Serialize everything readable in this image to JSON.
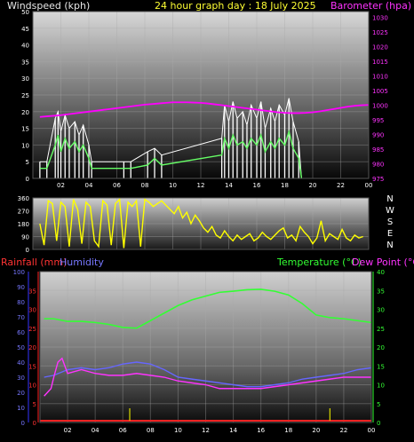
{
  "header": {
    "left_label": "Windspeed (kph)",
    "center_label": "24 hour graph day : 18 July 2025",
    "right_label": "Barometer (hpa)"
  },
  "colors": {
    "wind_max": "#ffffff",
    "wind_avg": "#66ff66",
    "barometer": "#ff00ff",
    "direction": "#ffff00",
    "rainfall": "#ff2222",
    "humidity": "#6666ff",
    "temperature": "#33ff33",
    "dewpoint": "#ff33ff",
    "rain_bars": "#cccc00"
  },
  "compass": [
    "N",
    "W",
    "S",
    "E",
    "N"
  ],
  "bottom_header": {
    "rainfall": "Rainfall (mm)",
    "humidity": "Humidity",
    "temperature": "Temperature (°C)",
    "dewpoint": "Dew Point (°C)"
  },
  "chart_data": [
    {
      "type": "line",
      "x_ticks": [
        "02",
        "04",
        "06",
        "08",
        "10",
        "12",
        "14",
        "16",
        "18",
        "20",
        "22",
        "00"
      ],
      "y_left_ticks": [
        "0",
        "5",
        "10",
        "15",
        "20",
        "25",
        "30",
        "35",
        "40",
        "45",
        "50"
      ],
      "y_right_ticks": [
        "975",
        "980",
        "985",
        "990",
        "995",
        "1000",
        "1005",
        "1010",
        "1015",
        "1020",
        "1025",
        "1030"
      ],
      "ylim_left": [
        0,
        50
      ],
      "ylim_right": [
        975,
        1032
      ],
      "series": [
        {
          "x": [
            0.5,
            1,
            1.5,
            2,
            2.5,
            3,
            3.5,
            4,
            4.5,
            5,
            5.5,
            6,
            6.5,
            7,
            7.5,
            8,
            8.5,
            9,
            9.5,
            10,
            10.5,
            11,
            11.5,
            12,
            12.5,
            13,
            13.5,
            14,
            14.5,
            15,
            15.5,
            16,
            16.5,
            17,
            17.5,
            18,
            18.5,
            19,
            19.5,
            20,
            20.5,
            21,
            21.5,
            22,
            22.5,
            23,
            23.5,
            24
          ],
          "values": [
            996,
            996.2,
            996.4,
            996.6,
            996.9,
            997.2,
            997.5,
            997.8,
            998.1,
            998.4,
            998.7,
            999,
            999.3,
            999.6,
            999.9,
            1000.2,
            1000.4,
            1000.6,
            1000.8,
            1001,
            1001,
            1001,
            1000.9,
            1000.8,
            1000.6,
            1000.3,
            1000,
            999.7,
            999.4,
            999.1,
            998.8,
            998.5,
            998.2,
            997.9,
            997.6,
            997.4,
            997.3,
            997.3,
            997.4,
            997.6,
            997.9,
            998.3,
            998.7,
            999.1,
            999.5,
            999.8,
            1000,
            1000.1
          ]
        },
        {
          "x": [
            0.5,
            1,
            1.6,
            1.8,
            2,
            2.3,
            2.6,
            3,
            3.3,
            3.6,
            4,
            4.2,
            6.5,
            7,
            8.2,
            8.7,
            9.2,
            13.5,
            13.7,
            14,
            14.3,
            14.6,
            15,
            15.3,
            15.6,
            16,
            16.3,
            16.6,
            17,
            17.3,
            17.6,
            18,
            18.3,
            18.6,
            19,
            19.2
          ],
          "values": [
            3,
            3,
            10,
            13,
            8,
            12,
            9,
            11,
            8,
            10,
            6,
            3,
            3,
            3,
            4,
            6,
            4,
            7,
            12,
            9,
            13,
            10,
            11,
            9,
            12,
            10,
            13,
            8,
            11,
            9,
            12,
            10,
            14,
            9,
            6,
            0
          ]
        },
        {
          "x": [
            0.5,
            1,
            1.6,
            1.8,
            2,
            2.3,
            2.6,
            3,
            3.3,
            3.6,
            4,
            4.2,
            6.5,
            7,
            8.2,
            8.7,
            9.2,
            13.5,
            13.7,
            14,
            14.3,
            14.6,
            15,
            15.3,
            15.6,
            16,
            16.3,
            16.6,
            17,
            17.3,
            17.6,
            18,
            18.3,
            18.6,
            19,
            19.2
          ],
          "values": [
            5,
            5,
            18,
            20,
            14,
            19,
            15,
            17,
            13,
            16,
            10,
            5,
            5,
            5,
            8,
            9,
            7,
            12,
            22,
            17,
            23,
            18,
            20,
            16,
            22,
            18,
            23,
            15,
            21,
            17,
            22,
            19,
            24,
            17,
            11,
            0
          ]
        }
      ]
    },
    {
      "type": "scatter",
      "x_ticks": [],
      "y_ticks": [
        "0",
        "90",
        "180",
        "270",
        "360"
      ],
      "ylim": [
        0,
        360
      ],
      "series": [
        {
          "x": [
            0.5,
            0.8,
            1.1,
            1.4,
            1.7,
            2,
            2.3,
            2.6,
            2.9,
            3.2,
            3.5,
            3.8,
            4.1,
            4.4,
            4.7,
            5,
            5.3,
            5.6,
            5.9,
            6.2,
            6.5,
            6.8,
            7.1,
            7.4,
            7.7,
            8,
            8.3,
            8.6,
            8.9,
            9.2,
            9.5,
            9.8,
            10.1,
            10.4,
            10.7,
            11,
            11.3,
            11.6,
            11.9,
            12.2,
            12.5,
            12.8,
            13.1,
            13.4,
            13.7,
            14,
            14.3,
            14.6,
            14.9,
            15.2,
            15.5,
            15.8,
            16.1,
            16.4,
            16.7,
            17,
            17.3,
            17.6,
            17.9,
            18.2,
            18.5,
            18.8,
            19.1,
            19.4,
            19.7,
            20,
            20.3,
            20.6,
            20.9,
            21.2,
            21.5,
            21.8,
            22.1,
            22.4,
            22.7,
            23,
            23.3,
            23.6
          ],
          "values": [
            180,
            30,
            340,
            320,
            60,
            330,
            300,
            20,
            350,
            280,
            40,
            330,
            300,
            60,
            20,
            340,
            310,
            30,
            320,
            350,
            10,
            330,
            300,
            340,
            20,
            350,
            330,
            300,
            320,
            340,
            310,
            280,
            250,
            300,
            220,
            260,
            180,
            240,
            200,
            150,
            120,
            160,
            100,
            80,
            130,
            90,
            60,
            100,
            70,
            90,
            110,
            60,
            80,
            120,
            90,
            70,
            100,
            130,
            150,
            80,
            100,
            60,
            160,
            120,
            90,
            40,
            80,
            200,
            60,
            110,
            90,
            70,
            140,
            80,
            60,
            100,
            80,
            90
          ]
        }
      ]
    },
    {
      "type": "line",
      "x_ticks": [
        "02",
        "04",
        "06",
        "08",
        "10",
        "12",
        "14",
        "16",
        "18",
        "20",
        "22",
        "00"
      ],
      "y_left_rain_ticks": [
        "0",
        "5",
        "10",
        "15",
        "20",
        "25",
        "30",
        "35"
      ],
      "y_left_hum_ticks": [
        "0",
        "10",
        "20",
        "30",
        "40",
        "50",
        "60",
        "70",
        "80",
        "90",
        "100"
      ],
      "y_right_ticks": [
        "0",
        "5",
        "10",
        "15",
        "20",
        "25",
        "30",
        "35",
        "40"
      ],
      "ylim_temp": [
        0,
        40
      ],
      "series": [
        {
          "x": [
            0.3,
            1,
            2,
            3,
            4,
            5,
            6,
            7,
            8,
            9,
            10,
            11,
            12,
            13,
            14,
            15,
            16,
            17,
            18,
            19,
            20,
            21,
            22,
            23,
            24
          ],
          "values": [
            27.5,
            27.5,
            26.8,
            26.8,
            26.5,
            26,
            25.2,
            25,
            27,
            29,
            31,
            32.5,
            33.5,
            34.5,
            34.8,
            35.2,
            35.3,
            34.8,
            33.8,
            31.5,
            28.5,
            27.8,
            27.5,
            27,
            26.5
          ]
        },
        {
          "x": [
            0.3,
            1,
            2,
            3,
            4,
            5,
            6,
            7,
            8,
            9,
            10,
            11,
            12,
            13,
            14,
            15,
            16,
            17,
            18,
            19,
            20,
            21,
            22,
            23,
            24
          ],
          "values": [
            12,
            12.5,
            14,
            14.5,
            14,
            14.5,
            15.5,
            16,
            15.5,
            14,
            12,
            11.5,
            11,
            10.5,
            10,
            9.5,
            9.5,
            10,
            10.5,
            11.5,
            12,
            12.5,
            13,
            14,
            14.5
          ]
        },
        {
          "x": [
            0.3,
            0.8,
            1,
            1.3,
            1.6,
            2,
            3,
            4,
            5,
            6,
            7,
            8,
            9,
            10,
            11,
            12,
            13,
            14,
            15,
            16,
            17,
            18,
            19,
            20,
            21,
            22,
            23,
            24
          ],
          "values": [
            7,
            9,
            12,
            16,
            17,
            13,
            14,
            13,
            12.5,
            12.5,
            13,
            12.5,
            12,
            11,
            10.5,
            10,
            9,
            9,
            9,
            9,
            9.5,
            10,
            10.5,
            11,
            11.5,
            12,
            12,
            12
          ]
        },
        {
          "x": [
            0.3,
            24
          ],
          "values": [
            0,
            0
          ]
        }
      ]
    }
  ]
}
